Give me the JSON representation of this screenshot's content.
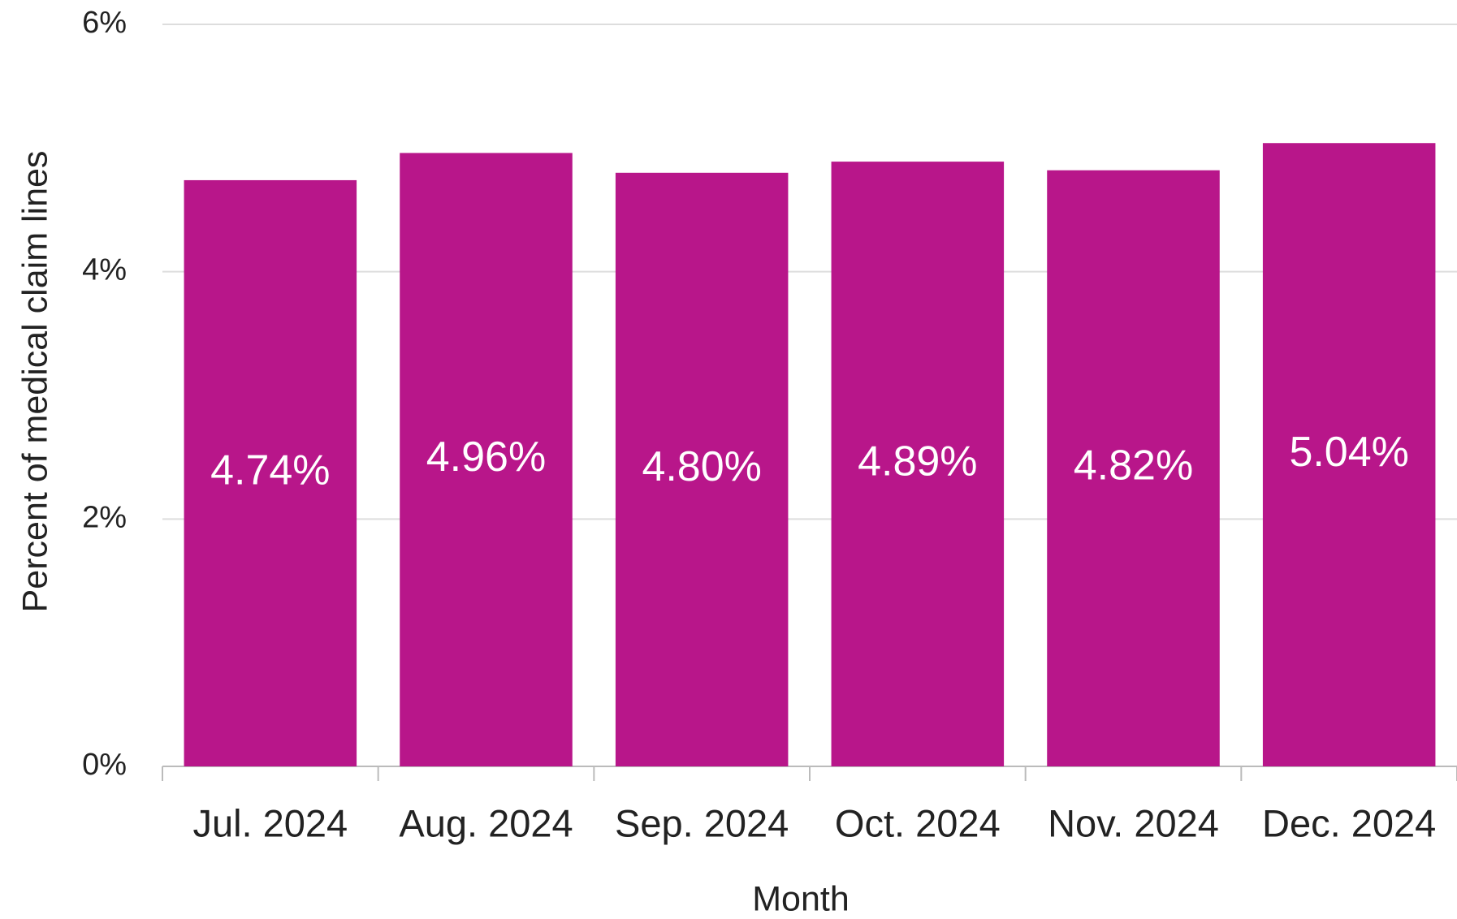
{
  "chart_data": {
    "type": "bar",
    "categories": [
      "Jul. 2024",
      "Aug. 2024",
      "Sep. 2024",
      "Oct. 2024",
      "Nov. 2024",
      "Dec. 2024"
    ],
    "values": [
      4.74,
      4.96,
      4.8,
      4.89,
      4.82,
      5.04
    ],
    "value_labels": [
      "4.74%",
      "4.96%",
      "4.80%",
      "4.89%",
      "4.82%",
      "5.04%"
    ],
    "color": "#b8168a",
    "ylim": [
      0,
      6
    ],
    "yticks": [
      {
        "value": 0,
        "label": "0%"
      },
      {
        "value": 2,
        "label": "2%"
      },
      {
        "value": 4,
        "label": "4%"
      },
      {
        "value": 6,
        "label": "6%"
      }
    ],
    "ylabel": "Percent of medical claim lines",
    "xlabel": "Month",
    "grid": true
  }
}
